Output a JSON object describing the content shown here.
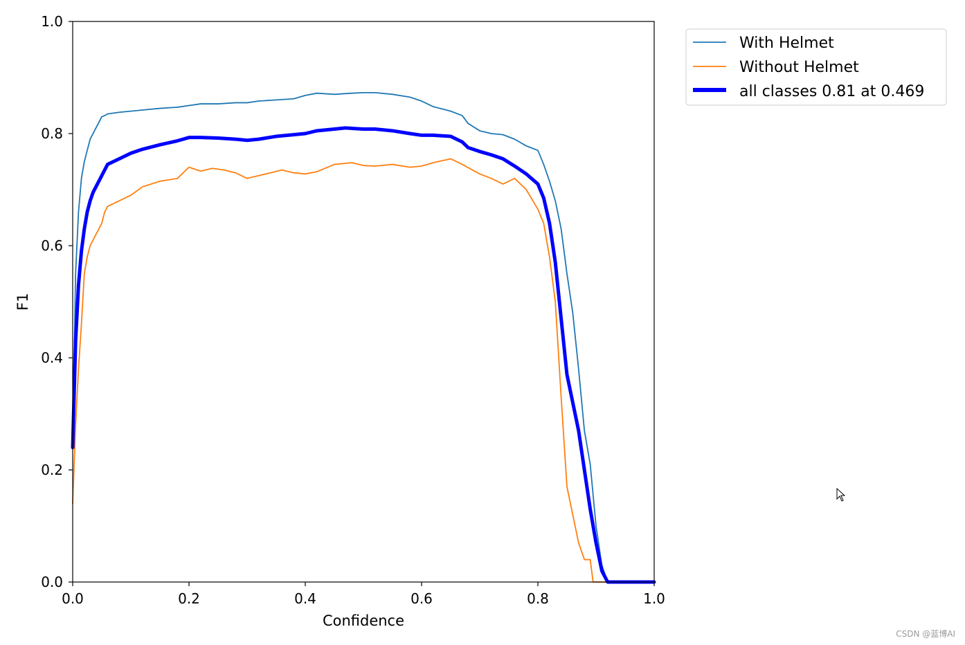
{
  "chart_data": {
    "type": "line",
    "title": "",
    "xlabel": "Confidence",
    "ylabel": "F1",
    "xlim": [
      0.0,
      1.0
    ],
    "ylim": [
      0.0,
      1.0
    ],
    "xticks": [
      "0.0",
      "0.2",
      "0.4",
      "0.6",
      "0.8",
      "1.0"
    ],
    "yticks": [
      "0.0",
      "0.2",
      "0.4",
      "0.6",
      "0.8",
      "1.0"
    ],
    "grid": false,
    "legend_position": "outside-top-right",
    "series": [
      {
        "name": "With Helmet",
        "color": "#1f77b4",
        "x": [
          0.0,
          0.005,
          0.01,
          0.015,
          0.02,
          0.025,
          0.03,
          0.035,
          0.04,
          0.045,
          0.05,
          0.055,
          0.06,
          0.08,
          0.1,
          0.12,
          0.15,
          0.18,
          0.2,
          0.22,
          0.25,
          0.28,
          0.3,
          0.32,
          0.35,
          0.38,
          0.4,
          0.42,
          0.45,
          0.48,
          0.5,
          0.52,
          0.55,
          0.58,
          0.6,
          0.62,
          0.65,
          0.67,
          0.68,
          0.7,
          0.72,
          0.74,
          0.76,
          0.78,
          0.8,
          0.81,
          0.82,
          0.83,
          0.84,
          0.85,
          0.86,
          0.87,
          0.88,
          0.89,
          0.9,
          0.91,
          0.92,
          1.0
        ],
        "values": [
          0.24,
          0.55,
          0.66,
          0.72,
          0.75,
          0.77,
          0.79,
          0.8,
          0.81,
          0.82,
          0.83,
          0.832,
          0.835,
          0.838,
          0.84,
          0.842,
          0.845,
          0.847,
          0.85,
          0.853,
          0.853,
          0.855,
          0.855,
          0.858,
          0.86,
          0.862,
          0.868,
          0.872,
          0.87,
          0.872,
          0.873,
          0.873,
          0.87,
          0.865,
          0.858,
          0.848,
          0.84,
          0.832,
          0.818,
          0.805,
          0.8,
          0.798,
          0.79,
          0.778,
          0.77,
          0.745,
          0.715,
          0.68,
          0.63,
          0.55,
          0.48,
          0.38,
          0.27,
          0.21,
          0.1,
          0.03,
          0.0,
          0.0
        ]
      },
      {
        "name": "Without Helmet",
        "color": "#ff7f0e",
        "x": [
          0.0,
          0.005,
          0.01,
          0.015,
          0.02,
          0.025,
          0.03,
          0.035,
          0.04,
          0.045,
          0.05,
          0.055,
          0.06,
          0.08,
          0.1,
          0.12,
          0.15,
          0.18,
          0.2,
          0.22,
          0.24,
          0.26,
          0.28,
          0.3,
          0.32,
          0.34,
          0.36,
          0.38,
          0.4,
          0.42,
          0.45,
          0.48,
          0.5,
          0.52,
          0.55,
          0.58,
          0.6,
          0.62,
          0.65,
          0.67,
          0.7,
          0.72,
          0.74,
          0.76,
          0.78,
          0.8,
          0.81,
          0.82,
          0.83,
          0.84,
          0.85,
          0.86,
          0.87,
          0.88,
          0.885,
          0.89,
          0.895,
          1.0
        ],
        "values": [
          0.14,
          0.28,
          0.38,
          0.46,
          0.55,
          0.58,
          0.6,
          0.61,
          0.62,
          0.63,
          0.64,
          0.66,
          0.67,
          0.68,
          0.69,
          0.705,
          0.715,
          0.72,
          0.74,
          0.733,
          0.738,
          0.735,
          0.73,
          0.72,
          0.725,
          0.73,
          0.735,
          0.73,
          0.728,
          0.732,
          0.745,
          0.748,
          0.743,
          0.742,
          0.745,
          0.74,
          0.742,
          0.748,
          0.755,
          0.745,
          0.728,
          0.72,
          0.71,
          0.72,
          0.7,
          0.665,
          0.64,
          0.58,
          0.5,
          0.33,
          0.17,
          0.12,
          0.07,
          0.04,
          0.04,
          0.04,
          0.0,
          0.0
        ]
      },
      {
        "name": "all classes 0.81 at 0.469",
        "color": "#0000ff",
        "x": [
          0.0,
          0.005,
          0.01,
          0.015,
          0.02,
          0.025,
          0.03,
          0.035,
          0.04,
          0.045,
          0.05,
          0.055,
          0.06,
          0.08,
          0.1,
          0.12,
          0.15,
          0.18,
          0.2,
          0.22,
          0.25,
          0.28,
          0.3,
          0.32,
          0.35,
          0.38,
          0.4,
          0.42,
          0.45,
          0.469,
          0.5,
          0.52,
          0.55,
          0.58,
          0.6,
          0.62,
          0.65,
          0.67,
          0.68,
          0.7,
          0.72,
          0.74,
          0.76,
          0.78,
          0.8,
          0.81,
          0.82,
          0.83,
          0.84,
          0.85,
          0.86,
          0.87,
          0.88,
          0.89,
          0.9,
          0.91,
          0.92,
          1.0
        ],
        "values": [
          0.24,
          0.43,
          0.53,
          0.59,
          0.63,
          0.66,
          0.68,
          0.695,
          0.705,
          0.715,
          0.725,
          0.735,
          0.745,
          0.755,
          0.765,
          0.772,
          0.78,
          0.787,
          0.793,
          0.793,
          0.792,
          0.79,
          0.788,
          0.79,
          0.795,
          0.798,
          0.8,
          0.805,
          0.808,
          0.81,
          0.808,
          0.808,
          0.805,
          0.8,
          0.797,
          0.797,
          0.795,
          0.785,
          0.775,
          0.768,
          0.762,
          0.755,
          0.742,
          0.728,
          0.71,
          0.685,
          0.64,
          0.57,
          0.47,
          0.37,
          0.32,
          0.27,
          0.2,
          0.13,
          0.07,
          0.02,
          0.0,
          0.0
        ]
      }
    ]
  },
  "watermark": "CSDN @蓝博AI"
}
